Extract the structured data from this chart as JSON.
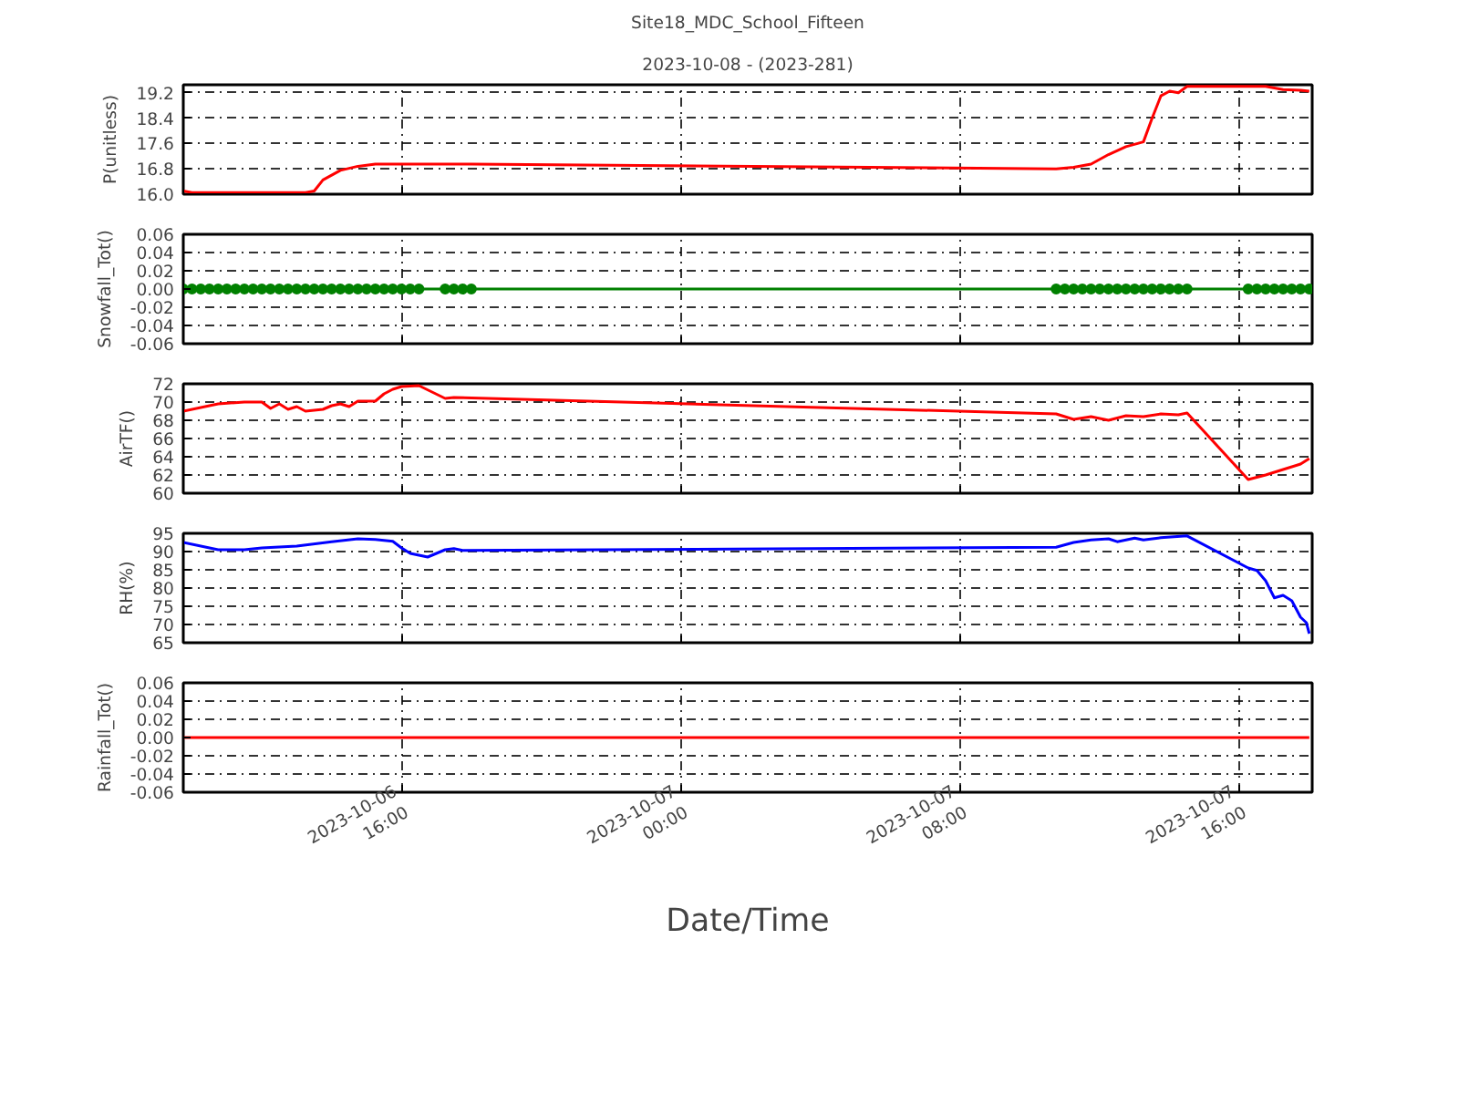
{
  "chart_data": [
    {
      "type": "line",
      "title": "Site18_MDC_School_Fifteen",
      "subtitle": "2023-10-08 - (2023-281)",
      "ylabel": "P(unitless)",
      "grid": true,
      "tick_labels": "y",
      "marker": "none",
      "line_style": "solid",
      "x": [
        "2023-10-06T09:45",
        "2023-10-06T10:00",
        "2023-10-06T13:15",
        "2023-10-06T13:30",
        "2023-10-06T13:45",
        "2023-10-06T14:15",
        "2023-10-06T14:45",
        "2023-10-06T15:15",
        "2023-10-06T16:30",
        "2023-10-06T18:00",
        "2023-10-07T10:45",
        "2023-10-07T11:15",
        "2023-10-07T11:45",
        "2023-10-07T12:15",
        "2023-10-07T12:45",
        "2023-10-07T13:15",
        "2023-10-07T13:30",
        "2023-10-07T13:45",
        "2023-10-07T14:00",
        "2023-10-07T14:15",
        "2023-10-07T14:30",
        "2023-10-07T15:45",
        "2023-10-07T16:45",
        "2023-10-07T17:15",
        "2023-10-07T17:45",
        "2023-10-07T18:00"
      ],
      "series": [
        {
          "color": "#ff0000",
          "values": [
            16.1,
            16.05,
            16.05,
            16.1,
            16.45,
            16.75,
            16.88,
            16.95,
            16.95,
            16.95,
            16.8,
            16.85,
            16.95,
            17.25,
            17.5,
            17.65,
            18.4,
            19.1,
            19.25,
            19.2,
            19.4,
            19.4,
            19.4,
            19.3,
            19.28,
            19.25
          ]
        }
      ],
      "xlim": [
        "2023-10-06T09:45",
        "2023-10-07T18:05"
      ],
      "ylim": [
        16.0,
        19.45
      ],
      "xticks": [
        {
          "value": "2023-10-06T16:00",
          "label": null
        },
        {
          "value": "2023-10-07T00:00",
          "label": null
        },
        {
          "value": "2023-10-07T08:00",
          "label": null
        },
        {
          "value": "2023-10-07T16:00",
          "label": null
        }
      ],
      "yticks": [
        {
          "value": 16.0,
          "label": "16.0"
        },
        {
          "value": 16.8,
          "label": "16.8"
        },
        {
          "value": 17.6,
          "label": "17.6"
        },
        {
          "value": 18.4,
          "label": "18.4"
        },
        {
          "value": 19.2,
          "label": "19.2"
        }
      ]
    },
    {
      "type": "line",
      "ylabel": "Snowfall_Tot()",
      "grid": true,
      "tick_labels": "y",
      "marker": "circle",
      "line_style": "solid",
      "x": [
        "2023-10-06T09:45",
        "2023-10-06T10:00",
        "2023-10-06T10:15",
        "2023-10-06T10:30",
        "2023-10-06T10:45",
        "2023-10-06T11:00",
        "2023-10-06T11:15",
        "2023-10-06T11:30",
        "2023-10-06T11:45",
        "2023-10-06T12:00",
        "2023-10-06T12:15",
        "2023-10-06T12:30",
        "2023-10-06T12:45",
        "2023-10-06T13:00",
        "2023-10-06T13:15",
        "2023-10-06T13:30",
        "2023-10-06T13:45",
        "2023-10-06T14:00",
        "2023-10-06T14:15",
        "2023-10-06T14:30",
        "2023-10-06T14:45",
        "2023-10-06T15:00",
        "2023-10-06T15:15",
        "2023-10-06T15:30",
        "2023-10-06T15:45",
        "2023-10-06T16:00",
        "2023-10-06T16:15",
        "2023-10-06T16:30",
        "2023-10-06T17:15",
        "2023-10-06T17:30",
        "2023-10-06T17:45",
        "2023-10-06T18:00",
        "2023-10-07T10:45",
        "2023-10-07T11:00",
        "2023-10-07T11:15",
        "2023-10-07T11:30",
        "2023-10-07T11:45",
        "2023-10-07T12:00",
        "2023-10-07T12:15",
        "2023-10-07T12:30",
        "2023-10-07T12:45",
        "2023-10-07T13:00",
        "2023-10-07T13:15",
        "2023-10-07T13:30",
        "2023-10-07T13:45",
        "2023-10-07T14:00",
        "2023-10-07T14:15",
        "2023-10-07T14:30",
        "2023-10-07T16:15",
        "2023-10-07T16:30",
        "2023-10-07T16:45",
        "2023-10-07T17:00",
        "2023-10-07T17:15",
        "2023-10-07T17:30",
        "2023-10-07T17:45",
        "2023-10-07T18:00"
      ],
      "series": [
        {
          "color": "#008000",
          "values": [
            0,
            0,
            0,
            0,
            0,
            0,
            0,
            0,
            0,
            0,
            0,
            0,
            0,
            0,
            0,
            0,
            0,
            0,
            0,
            0,
            0,
            0,
            0,
            0,
            0,
            0,
            0,
            0,
            0,
            0,
            0,
            0,
            0,
            0,
            0,
            0,
            0,
            0,
            0,
            0,
            0,
            0,
            0,
            0,
            0,
            0,
            0,
            0,
            0,
            0,
            0,
            0,
            0,
            0,
            0,
            0
          ]
        }
      ],
      "xlim": [
        "2023-10-06T09:45",
        "2023-10-07T18:05"
      ],
      "ylim": [
        -0.06,
        0.06
      ],
      "xticks": [
        {
          "value": "2023-10-06T16:00",
          "label": null
        },
        {
          "value": "2023-10-07T00:00",
          "label": null
        },
        {
          "value": "2023-10-07T08:00",
          "label": null
        },
        {
          "value": "2023-10-07T16:00",
          "label": null
        }
      ],
      "yticks": [
        {
          "value": -0.06,
          "label": "-0.06"
        },
        {
          "value": -0.04,
          "label": "-0.04"
        },
        {
          "value": -0.02,
          "label": "-0.02"
        },
        {
          "value": 0,
          "label": "0.00"
        },
        {
          "value": 0.02,
          "label": "0.02"
        },
        {
          "value": 0.04,
          "label": "0.04"
        },
        {
          "value": 0.06,
          "label": "0.06"
        }
      ]
    },
    {
      "type": "line",
      "ylabel": "AirTF()",
      "grid": true,
      "tick_labels": "y",
      "marker": "none",
      "line_style": "solid",
      "x": [
        "2023-10-06T09:45",
        "2023-10-06T10:45",
        "2023-10-06T11:30",
        "2023-10-06T12:00",
        "2023-10-06T12:15",
        "2023-10-06T12:30",
        "2023-10-06T12:45",
        "2023-10-06T13:00",
        "2023-10-06T13:15",
        "2023-10-06T13:45",
        "2023-10-06T14:00",
        "2023-10-06T14:15",
        "2023-10-06T14:30",
        "2023-10-06T14:45",
        "2023-10-06T15:15",
        "2023-10-06T15:30",
        "2023-10-06T15:45",
        "2023-10-06T16:00",
        "2023-10-06T16:30",
        "2023-10-06T17:15",
        "2023-10-06T17:30",
        "2023-10-07T10:45",
        "2023-10-07T11:15",
        "2023-10-07T11:45",
        "2023-10-07T12:15",
        "2023-10-07T12:45",
        "2023-10-07T13:15",
        "2023-10-07T13:45",
        "2023-10-07T14:15",
        "2023-10-07T14:30",
        "2023-10-07T16:15",
        "2023-10-07T16:45",
        "2023-10-07T17:15",
        "2023-10-07T17:45",
        "2023-10-07T18:00"
      ],
      "series": [
        {
          "color": "#ff0000",
          "values": [
            69.0,
            69.8,
            70.0,
            70.0,
            69.3,
            69.8,
            69.2,
            69.5,
            69.0,
            69.2,
            69.6,
            69.8,
            69.5,
            70.1,
            70.1,
            70.9,
            71.4,
            71.7,
            71.8,
            70.4,
            70.5,
            68.7,
            68.1,
            68.4,
            68.0,
            68.5,
            68.4,
            68.7,
            68.6,
            68.8,
            61.5,
            62.0,
            62.6,
            63.2,
            63.8
          ]
        }
      ],
      "xlim": [
        "2023-10-06T09:45",
        "2023-10-07T18:05"
      ],
      "ylim": [
        60,
        72
      ],
      "xticks": [
        {
          "value": "2023-10-06T16:00",
          "label": null
        },
        {
          "value": "2023-10-07T00:00",
          "label": null
        },
        {
          "value": "2023-10-07T08:00",
          "label": null
        },
        {
          "value": "2023-10-07T16:00",
          "label": null
        }
      ],
      "yticks": [
        60,
        62,
        64,
        66,
        68,
        70,
        72
      ]
    },
    {
      "type": "line",
      "ylabel": "RH(%)",
      "grid": true,
      "tick_labels": "y",
      "marker": "none",
      "line_style": "solid",
      "x": [
        "2023-10-06T09:45",
        "2023-10-06T10:45",
        "2023-10-06T11:30",
        "2023-10-06T12:00",
        "2023-10-06T13:00",
        "2023-10-06T14:00",
        "2023-10-06T14:45",
        "2023-10-06T15:15",
        "2023-10-06T15:45",
        "2023-10-06T16:00",
        "2023-10-06T16:15",
        "2023-10-06T16:45",
        "2023-10-06T17:15",
        "2023-10-06T17:30",
        "2023-10-06T17:45",
        "2023-10-07T10:45",
        "2023-10-07T11:15",
        "2023-10-07T11:45",
        "2023-10-07T12:15",
        "2023-10-07T12:30",
        "2023-10-07T13:00",
        "2023-10-07T13:15",
        "2023-10-07T13:45",
        "2023-10-07T14:30",
        "2023-10-07T16:15",
        "2023-10-07T16:30",
        "2023-10-07T16:45",
        "2023-10-07T17:00",
        "2023-10-07T17:15",
        "2023-10-07T17:30",
        "2023-10-07T17:45",
        "2023-10-07T17:55",
        "2023-10-07T18:00"
      ],
      "series": [
        {
          "color": "#0000ff",
          "values": [
            92.5,
            90.5,
            90.5,
            91.0,
            91.5,
            92.7,
            93.5,
            93.3,
            92.8,
            91.0,
            89.5,
            88.5,
            90.5,
            90.8,
            90.3,
            91.2,
            92.5,
            93.2,
            93.5,
            92.7,
            93.7,
            93.2,
            93.8,
            94.3,
            85.5,
            84.8,
            82.0,
            77.3,
            78.0,
            76.5,
            72.0,
            70.5,
            67.5
          ]
        }
      ],
      "xlim": [
        "2023-10-06T09:45",
        "2023-10-07T18:05"
      ],
      "ylim": [
        65,
        95
      ],
      "xticks": [
        {
          "value": "2023-10-06T16:00",
          "label": null
        },
        {
          "value": "2023-10-07T00:00",
          "label": null
        },
        {
          "value": "2023-10-07T08:00",
          "label": null
        },
        {
          "value": "2023-10-07T16:00",
          "label": null
        }
      ],
      "yticks": [
        65,
        70,
        75,
        80,
        85,
        90,
        95
      ]
    },
    {
      "type": "line",
      "ylabel": "Rainfall_Tot()",
      "xlabel": "Date/Time",
      "grid": true,
      "marker": "none",
      "line_style": "solid",
      "x": [
        "2023-10-06T09:45",
        "2023-10-07T18:00"
      ],
      "series": [
        {
          "color": "#ff0000",
          "values": [
            0,
            0
          ]
        }
      ],
      "xlim": [
        "2023-10-06T09:45",
        "2023-10-07T18:05"
      ],
      "ylim": [
        -0.06,
        0.06
      ],
      "xticks": [
        {
          "value": "2023-10-06T16:00",
          "label": "2023-10-06\n16:00"
        },
        {
          "value": "2023-10-07T00:00",
          "label": "2023-10-07\n00:00"
        },
        {
          "value": "2023-10-07T08:00",
          "label": "2023-10-07\n08:00"
        },
        {
          "value": "2023-10-07T16:00",
          "label": "2023-10-07\n16:00"
        }
      ],
      "yticks": [
        {
          "value": -0.06,
          "label": "-0.06"
        },
        {
          "value": -0.04,
          "label": "-0.04"
        },
        {
          "value": -0.02,
          "label": "-0.02"
        },
        {
          "value": 0,
          "label": "0.00"
        },
        {
          "value": 0.02,
          "label": "0.02"
        },
        {
          "value": 0.04,
          "label": "0.04"
        },
        {
          "value": 0.06,
          "label": "0.06"
        }
      ]
    }
  ]
}
